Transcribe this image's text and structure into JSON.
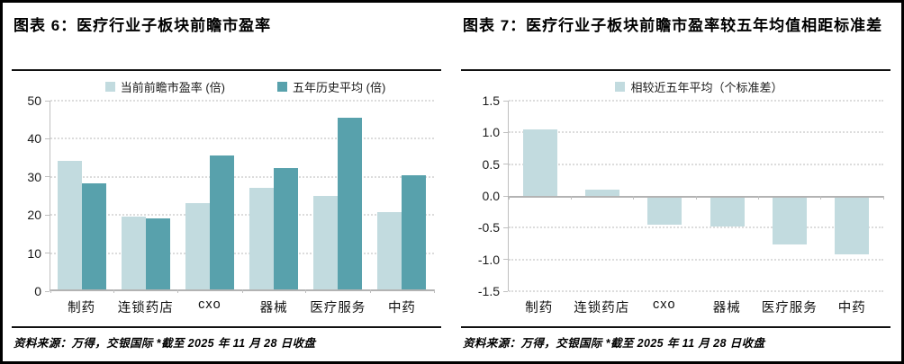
{
  "panels": [
    {
      "title": "图表 6：医疗行业子板块前瞻市盈率",
      "footer": "资料来源：万得，交银国际  *截至 2025 年 11 月 28 日收盘"
    },
    {
      "title": "图表 7：医疗行业子板块前瞻市盈率较五年均值相距标准差",
      "footer": "资料来源：万得，交银国际  *截至 2025 年 11 月 28 日收盘"
    }
  ],
  "colors": {
    "series_light": "#c2dbdf",
    "series_dark": "#58a1ac",
    "axis_line": "#bfbfbf",
    "zero_axis": "#b3b3b3",
    "gridline": "#dcdcdc",
    "rule": "#111111",
    "frame": "#000000"
  },
  "chart_data": [
    {
      "type": "bar",
      "title": "图表 6：医疗行业子板块前瞻市盈率",
      "categories": [
        "制药",
        "连锁药店",
        "cxo",
        "器械",
        "医疗服务",
        "中药"
      ],
      "series": [
        {
          "name": "当前前瞻市盈率 (倍)",
          "color": "#c2dbdf",
          "values": [
            34.2,
            19.6,
            23.0,
            27.2,
            25.0,
            20.8
          ]
        },
        {
          "name": "五年历史平均 (倍)",
          "color": "#58a1ac",
          "values": [
            28.4,
            19.0,
            35.7,
            32.3,
            45.5,
            30.5
          ]
        }
      ],
      "xlabel": "",
      "ylabel": "",
      "ylim": [
        0,
        50
      ],
      "yticks": [
        50,
        40,
        30,
        20,
        10,
        0
      ],
      "ytick_decimals": 0,
      "legend_position": "top",
      "grid": "horizontal-dotted"
    },
    {
      "type": "bar",
      "title": "图表 7：医疗行业子板块前瞻市盈率较五年均值相距标准差",
      "categories": [
        "制药",
        "连锁药店",
        "cxo",
        "器械",
        "医疗服务",
        "中药"
      ],
      "series": [
        {
          "name": "相较近五年平均（个标准差）",
          "color": "#c2dbdf",
          "values": [
            1.05,
            0.1,
            -0.45,
            -0.48,
            -0.77,
            -0.92
          ]
        }
      ],
      "xlabel": "",
      "ylabel": "",
      "ylim": [
        -1.5,
        1.5
      ],
      "yticks": [
        1.5,
        1.0,
        0.5,
        0.0,
        -0.5,
        -1.0,
        -1.5
      ],
      "ytick_decimals": 1,
      "legend_position": "top",
      "grid": "horizontal-dotted"
    }
  ]
}
